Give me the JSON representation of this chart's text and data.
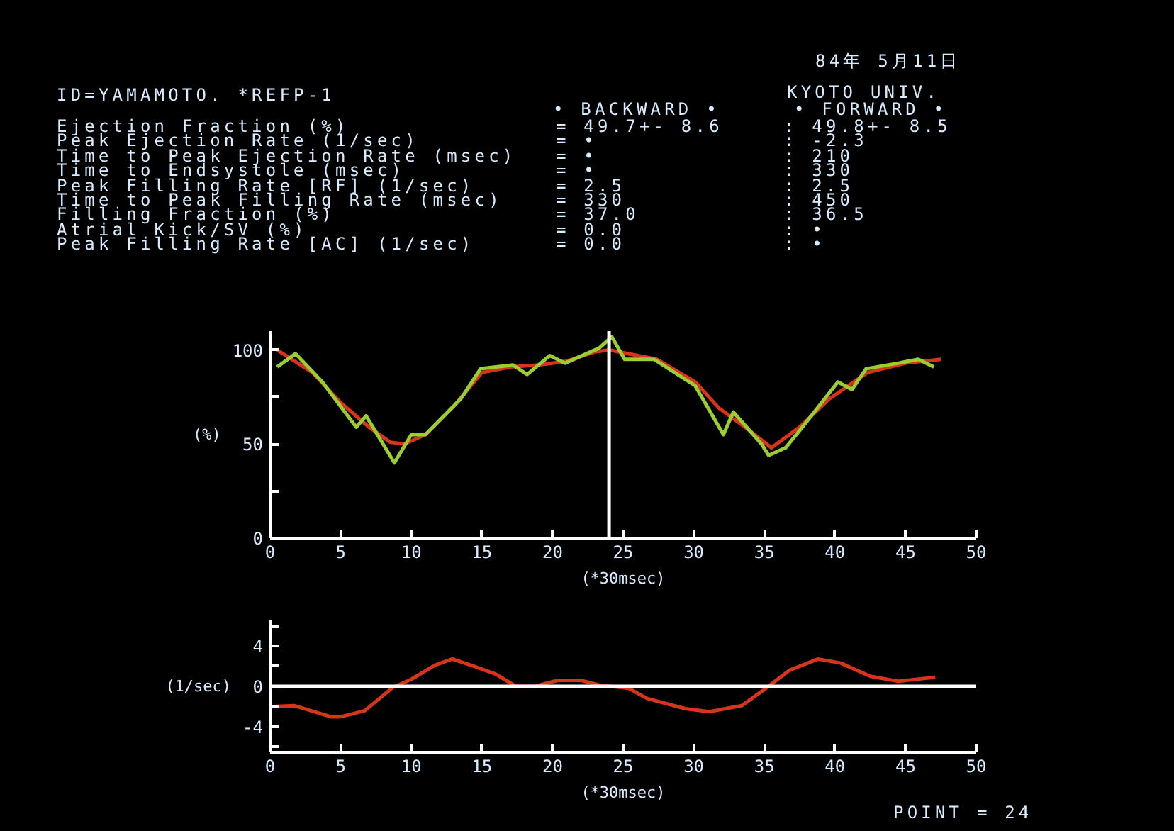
{
  "chart_data": [
    {
      "type": "line",
      "xlabel": "(*30msec)",
      "ylabel": "(%)",
      "xlim": [
        0,
        50
      ],
      "xticks": [
        0,
        5,
        10,
        15,
        20,
        25,
        30,
        35,
        40,
        45,
        50
      ],
      "ylim": [
        0,
        110
      ],
      "yticks": [
        0,
        {
          "value": 25,
          "label": null
        },
        50,
        {
          "value": 75,
          "label": null
        },
        100
      ],
      "series": [
        {
          "color": "#d8341c",
          "x": [
            0.5,
            3,
            5,
            7,
            8.5,
            9.5,
            11,
            13,
            15,
            17,
            19,
            21,
            23,
            24,
            27.4,
            30.1,
            31.8,
            33.8,
            35.5,
            37.5,
            39.6,
            42.3,
            45,
            47.5
          ],
          "values": [
            100,
            88,
            72,
            59,
            51,
            50,
            55,
            70,
            88,
            91,
            92,
            94,
            99,
            100,
            95,
            83,
            69,
            58,
            48,
            59,
            74,
            88,
            93,
            95
          ]
        },
        {
          "color": "#9acd32",
          "x": [
            0.5,
            1.8,
            3.7,
            6.1,
            6.8,
            8.8,
            10,
            11,
            13.5,
            14.9,
            17.2,
            18.2,
            19.8,
            20.9,
            23.3,
            24.2,
            25.1,
            27.2,
            30.1,
            32.1,
            32.8,
            34.8,
            35.3,
            36.5,
            37.8,
            40.2,
            41.2,
            42.2,
            44.5,
            45.9,
            47
          ],
          "values": [
            91,
            98,
            83,
            59,
            65,
            40,
            55,
            55,
            74,
            90,
            92,
            87,
            97,
            93,
            101,
            107,
            95,
            95,
            81,
            55,
            67,
            50,
            44,
            48,
            60,
            83,
            79,
            90,
            93,
            95,
            91
          ]
        }
      ],
      "ref_lines": [
        {
          "axis": "x",
          "value": 24,
          "color": "#ffffff"
        }
      ],
      "annotations": [
        "ID=YAMAMOTO. *REFP-1",
        "84年 5月11日",
        "KYOTO UNIV.",
        "• BACKWARD •",
        "• FORWARD •",
        "Ejection Fraction (%)",
        "= 49.7+- 8.6",
        ": 49.8+- 8.5",
        "Peak Ejection Rate (1/sec)",
        "= •",
        ": -2.3",
        "Time to Peak Ejection Rate (msec)",
        "= •",
        ": 210",
        "Time to Endsystole (msec)",
        "= •",
        ": 330",
        "Peak Filling Rate [RF] (1/sec)",
        "= 2.5",
        ": 2.5",
        "Time to Peak Filling Rate (msec)",
        "= 330",
        ": 450",
        "Filling Fraction (%)",
        "= 37.0",
        ": 36.5",
        "Atrial Kick/SV (%)",
        "= 0.0",
        ": •",
        "Peak Filling Rate [AC] (1/sec)",
        "= 0.0",
        ": •"
      ]
    },
    {
      "type": "line",
      "xlabel": "(*30msec)",
      "ylabel": "(1/sec)",
      "xlim": [
        0,
        50
      ],
      "xticks": [
        0,
        5,
        10,
        15,
        20,
        25,
        30,
        35,
        40,
        45,
        50
      ],
      "ylim": [
        -6.5,
        6.5
      ],
      "yticks": [
        {
          "value": 6,
          "label": null
        },
        4,
        {
          "value": 2,
          "label": null
        },
        0,
        {
          "value": -2,
          "label": null
        },
        -4,
        {
          "value": -6,
          "label": null
        }
      ],
      "series": [
        {
          "color": "#d8341c",
          "x": [
            0.2,
            1.7,
            4.3,
            5,
            6.7,
            8.7,
            10,
            11.7,
            12.9,
            14.4,
            16,
            17.4,
            18.7,
            20.4,
            22,
            23.4,
            25.4,
            26.7,
            29.4,
            31.1,
            33.4,
            35.1,
            36.8,
            38.8,
            40.4,
            42.5,
            44.5,
            47.1
          ],
          "values": [
            -2,
            -1.9,
            -3,
            -3,
            -2.4,
            -0.1,
            0.7,
            2.1,
            2.7,
            2,
            1.2,
            0,
            0,
            0.6,
            0.6,
            0.1,
            -0.2,
            -1.2,
            -2.2,
            -2.5,
            -1.9,
            -0.2,
            1.6,
            2.7,
            2.3,
            1,
            0.5,
            0.9
          ]
        }
      ],
      "ref_lines": [
        {
          "axis": "y",
          "value": 0,
          "color": "#ffffff"
        }
      ],
      "annotations": [
        "POINT = 24"
      ]
    }
  ]
}
